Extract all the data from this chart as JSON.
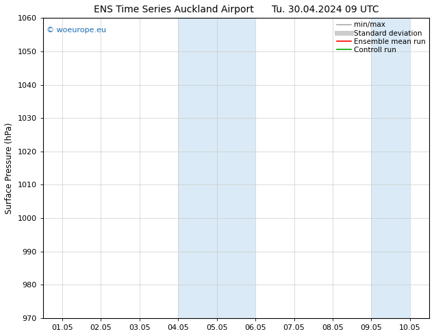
{
  "title": "ENS Time Series Auckland Airport",
  "date_label": "Tu. 30.04.2024 09 UTC",
  "ylabel": "Surface Pressure (hPa)",
  "ylim": [
    970,
    1060
  ],
  "yticks": [
    970,
    980,
    990,
    1000,
    1010,
    1020,
    1030,
    1040,
    1050,
    1060
  ],
  "xtick_labels": [
    "01.05",
    "02.05",
    "03.05",
    "04.05",
    "05.05",
    "06.05",
    "07.05",
    "08.05",
    "09.05",
    "10.05"
  ],
  "xlim": [
    0,
    9
  ],
  "shaded_regions": [
    {
      "xmin": 3.0,
      "xmax": 4.0
    },
    {
      "xmin": 4.0,
      "xmax": 5.0
    },
    {
      "xmin": 8.0,
      "xmax": 9.0
    }
  ],
  "shaded_color": "#daeaf6",
  "background_color": "#ffffff",
  "plot_bg_color": "#ffffff",
  "watermark_text": "© woeurope.eu",
  "watermark_color": "#1a6eb5",
  "legend_items": [
    {
      "label": "min/max",
      "color": "#aaaaaa",
      "lw": 1.2,
      "style": "-"
    },
    {
      "label": "Standard deviation",
      "color": "#cccccc",
      "lw": 5,
      "style": "-"
    },
    {
      "label": "Ensemble mean run",
      "color": "#ff0000",
      "lw": 1.2,
      "style": "-"
    },
    {
      "label": "Controll run",
      "color": "#00aa00",
      "lw": 1.2,
      "style": "-"
    }
  ],
  "title_fontsize": 10,
  "axis_label_fontsize": 8.5,
  "tick_fontsize": 8,
  "legend_fontsize": 7.5
}
